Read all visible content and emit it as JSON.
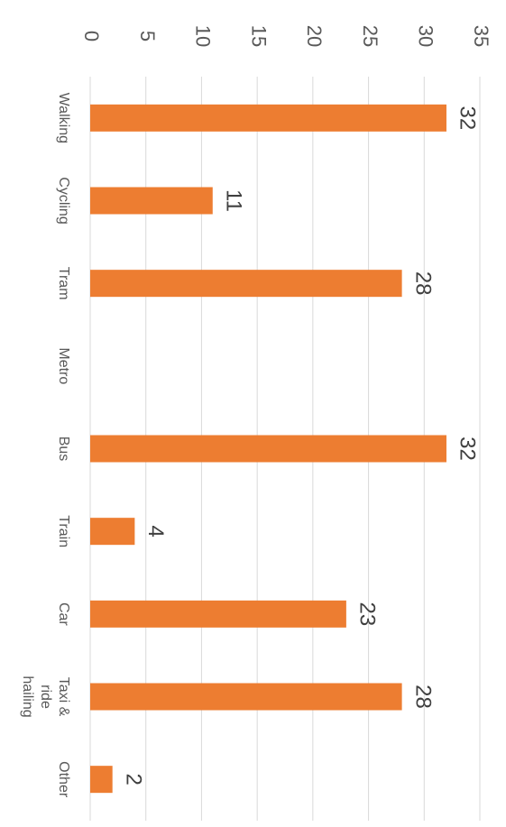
{
  "chart_data": {
    "type": "bar",
    "categories": [
      "Walking",
      "Cycling",
      "Tram",
      "Metro",
      "Bus",
      "Train",
      "Car",
      "Taxi & ride hailing",
      "Other"
    ],
    "values": [
      32,
      11,
      28,
      null,
      32,
      4,
      23,
      28,
      2
    ],
    "color": "#ed7d31",
    "ylim": [
      0,
      35
    ],
    "yticks": [
      0,
      5,
      10,
      15,
      20,
      25,
      30,
      35
    ],
    "grid": true
  }
}
